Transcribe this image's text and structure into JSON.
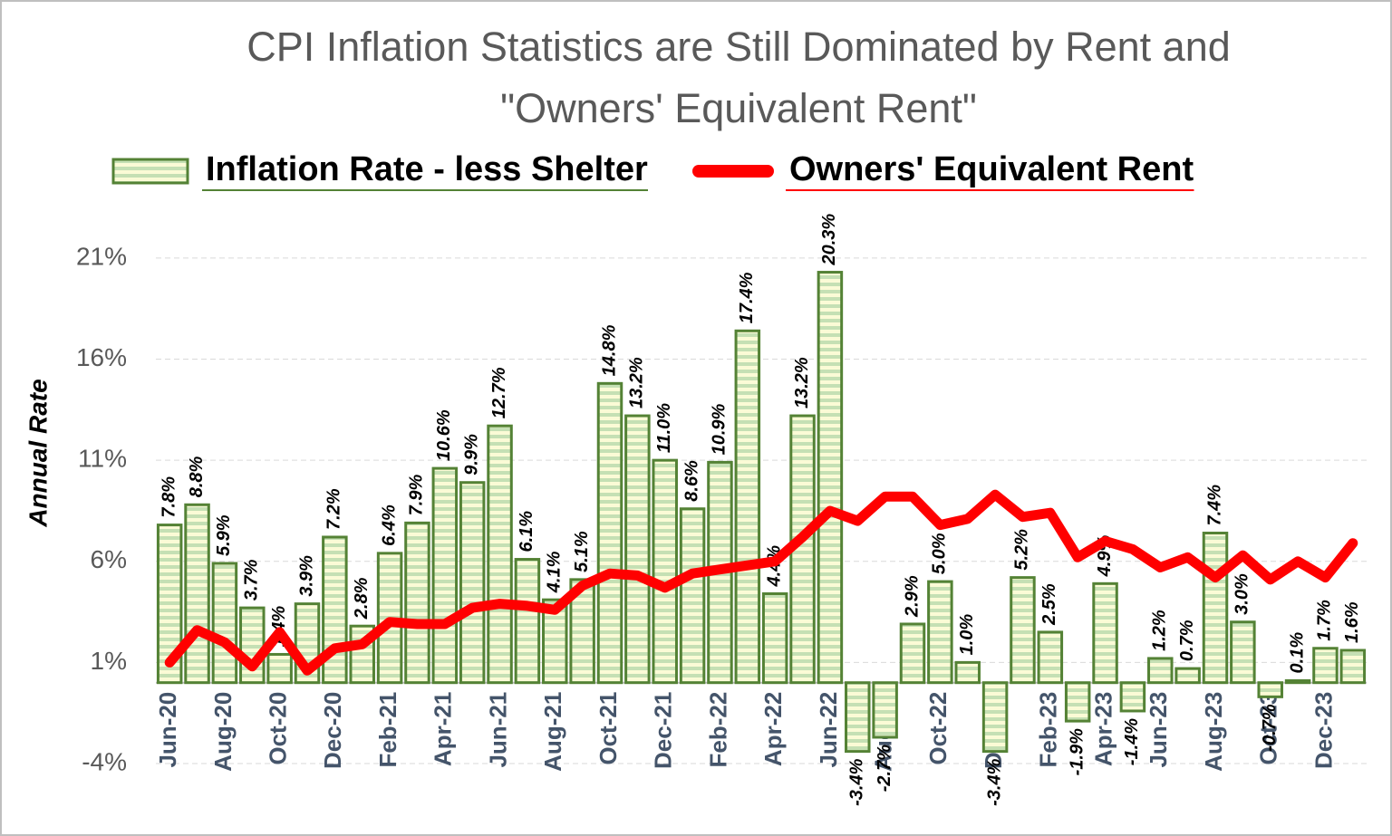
{
  "chart_data": {
    "type": "bar-line",
    "title": "CPI Inflation Statistics are Still Dominated by Rent and \"Owners' Equivalent Rent\"",
    "ylabel": "Annual Rate",
    "categories": [
      "Jun-20",
      null,
      "Aug-20",
      null,
      "Oct-20",
      null,
      "Dec-20",
      null,
      "Feb-21",
      null,
      "Apr-21",
      null,
      "Jun-21",
      null,
      "Aug-21",
      null,
      "Oct-21",
      null,
      "Dec-21",
      null,
      "Feb-22",
      null,
      "Apr-22",
      null,
      "Jun-22",
      null,
      "Aug-22",
      null,
      "Oct-22",
      null,
      "Dec-22",
      null,
      "Feb-23",
      null,
      "Apr-23",
      null,
      "Jun-23",
      null,
      "Aug-23",
      null,
      "Oct-23",
      null,
      "Dec-23",
      null
    ],
    "ylim": [
      -4,
      22
    ],
    "yticks": [
      {
        "value": -4,
        "label": "-4%"
      },
      {
        "value": 1,
        "label": "1%"
      },
      {
        "value": 6,
        "label": "6%"
      },
      {
        "value": 11,
        "label": "11%"
      },
      {
        "value": 16,
        "label": "16%"
      },
      {
        "value": 21,
        "label": "21%"
      }
    ],
    "grid": true,
    "series": [
      {
        "name": "Inflation Rate - less Shelter",
        "type": "bar",
        "color": "#c5e0b4",
        "edgecolor": "#548235",
        "values": [
          7.8,
          8.8,
          5.9,
          3.7,
          1.4,
          3.9,
          7.2,
          2.8,
          6.4,
          7.9,
          10.6,
          9.9,
          12.7,
          6.1,
          4.1,
          5.1,
          14.8,
          13.2,
          11.0,
          8.6,
          10.9,
          17.4,
          4.4,
          13.2,
          20.3,
          -3.4,
          -2.7,
          2.9,
          5.0,
          1.0,
          -3.4,
          5.2,
          2.5,
          -1.9,
          4.9,
          -1.4,
          1.2,
          0.7,
          7.4,
          3.0,
          -0.7,
          0.1,
          1.7,
          1.6
        ],
        "value_labels": [
          "7.8%",
          "8.8%",
          "5.9%",
          "3.7%",
          "1.4%",
          "3.9%",
          "7.2%",
          "2.8%",
          "6.4%",
          "7.9%",
          "10.6%",
          "9.9%",
          "12.7%",
          "6.1%",
          "4.1%",
          "5.1%",
          "14.8%",
          "13.2%",
          "11.0%",
          "8.6%",
          "10.9%",
          "17.4%",
          "4.4%",
          "13.2%",
          "20.3%",
          "-3.4%",
          "-2.7%",
          "2.9%",
          "5.0%",
          "1.0%",
          "-3.4%",
          "5.2%",
          "2.5%",
          "-1.9%",
          "4.9%",
          "-1.4%",
          "1.2%",
          "0.7%",
          "7.4%",
          "3.0%",
          "-0.7%",
          "0.1%",
          "1.7%",
          "1.6%"
        ]
      },
      {
        "name": "Owners' Equivalent Rent",
        "type": "line",
        "color": "#ff0000",
        "values": [
          1.0,
          2.6,
          2.0,
          0.8,
          2.5,
          0.6,
          1.7,
          1.9,
          3.0,
          2.9,
          2.9,
          3.7,
          3.9,
          3.8,
          3.6,
          4.8,
          5.4,
          5.3,
          4.7,
          5.4,
          5.6,
          5.8,
          6.0,
          7.2,
          8.5,
          8.0,
          9.2,
          9.2,
          7.8,
          8.1,
          9.3,
          8.2,
          8.4,
          6.2,
          7.0,
          6.6,
          5.7,
          6.2,
          5.2,
          6.3,
          5.1,
          6.0,
          5.2,
          6.9
        ]
      }
    ]
  }
}
